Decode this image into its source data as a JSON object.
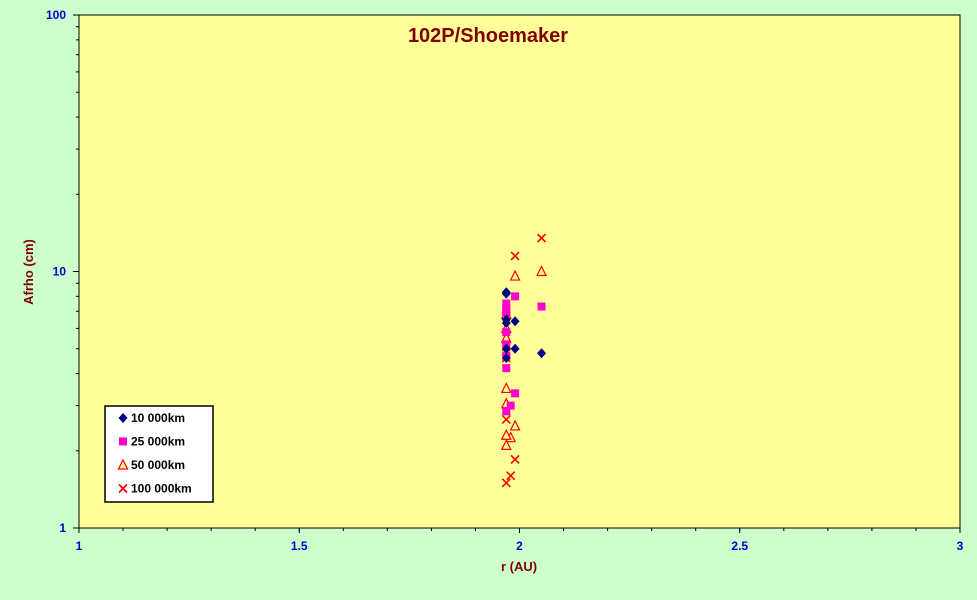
{
  "chart_data": {
    "type": "scatter",
    "title": "102P/Shoemaker",
    "xlabel": "r (AU)",
    "ylabel": "Afrho (cm)",
    "xlim": [
      1,
      3
    ],
    "ylim": [
      1,
      100
    ],
    "yscale": "log",
    "x_ticks": [
      "1",
      "1.5",
      "2",
      "2.5",
      "3"
    ],
    "y_ticks": [
      "1",
      "10",
      "100"
    ],
    "grid": false,
    "legend_position": "bottom-left",
    "colors": {
      "background": "#ccffcc",
      "plot_area": "#ffff99",
      "title": "#800000",
      "axis_label": "#800000",
      "tick_label": "#0000cc"
    },
    "series": [
      {
        "name": "10 000km",
        "marker": "diamond",
        "color": "#000080",
        "points": [
          [
            1.97,
            8.3
          ],
          [
            1.97,
            8.2
          ],
          [
            1.97,
            6.5
          ],
          [
            1.97,
            6.3
          ],
          [
            1.99,
            6.4
          ],
          [
            1.97,
            5.0
          ],
          [
            1.99,
            5.0
          ],
          [
            1.97,
            4.6
          ],
          [
            2.05,
            4.8
          ]
        ]
      },
      {
        "name": "25 000km",
        "marker": "square",
        "color": "#ff00cc",
        "points": [
          [
            1.97,
            7.5
          ],
          [
            1.97,
            7.2
          ],
          [
            1.99,
            8.0
          ],
          [
            1.97,
            6.9
          ],
          [
            1.97,
            5.8
          ],
          [
            1.97,
            5.2
          ],
          [
            1.97,
            4.7
          ],
          [
            1.97,
            4.2
          ],
          [
            1.99,
            3.35
          ],
          [
            1.98,
            3.0
          ],
          [
            1.97,
            2.85
          ],
          [
            2.05,
            7.3
          ]
        ]
      },
      {
        "name": "50 000km",
        "marker": "triangle",
        "color": "#ff0000",
        "points": [
          [
            1.97,
            6.8
          ],
          [
            1.97,
            6.0
          ],
          [
            1.97,
            5.5
          ],
          [
            1.99,
            9.6
          ],
          [
            2.05,
            10.0
          ],
          [
            1.97,
            3.5
          ],
          [
            1.97,
            3.05
          ],
          [
            1.99,
            2.5
          ],
          [
            1.98,
            2.25
          ],
          [
            1.97,
            2.3
          ],
          [
            1.97,
            2.1
          ]
        ]
      },
      {
        "name": "100 000km",
        "marker": "x",
        "color": "#ff0000",
        "points": [
          [
            2.05,
            13.5
          ],
          [
            1.99,
            11.5
          ],
          [
            1.97,
            7.0
          ],
          [
            1.97,
            6.7
          ],
          [
            1.97,
            5.1
          ],
          [
            1.97,
            4.6
          ],
          [
            1.97,
            2.65
          ],
          [
            1.99,
            1.85
          ],
          [
            1.98,
            1.6
          ],
          [
            1.97,
            1.5
          ]
        ]
      }
    ]
  }
}
